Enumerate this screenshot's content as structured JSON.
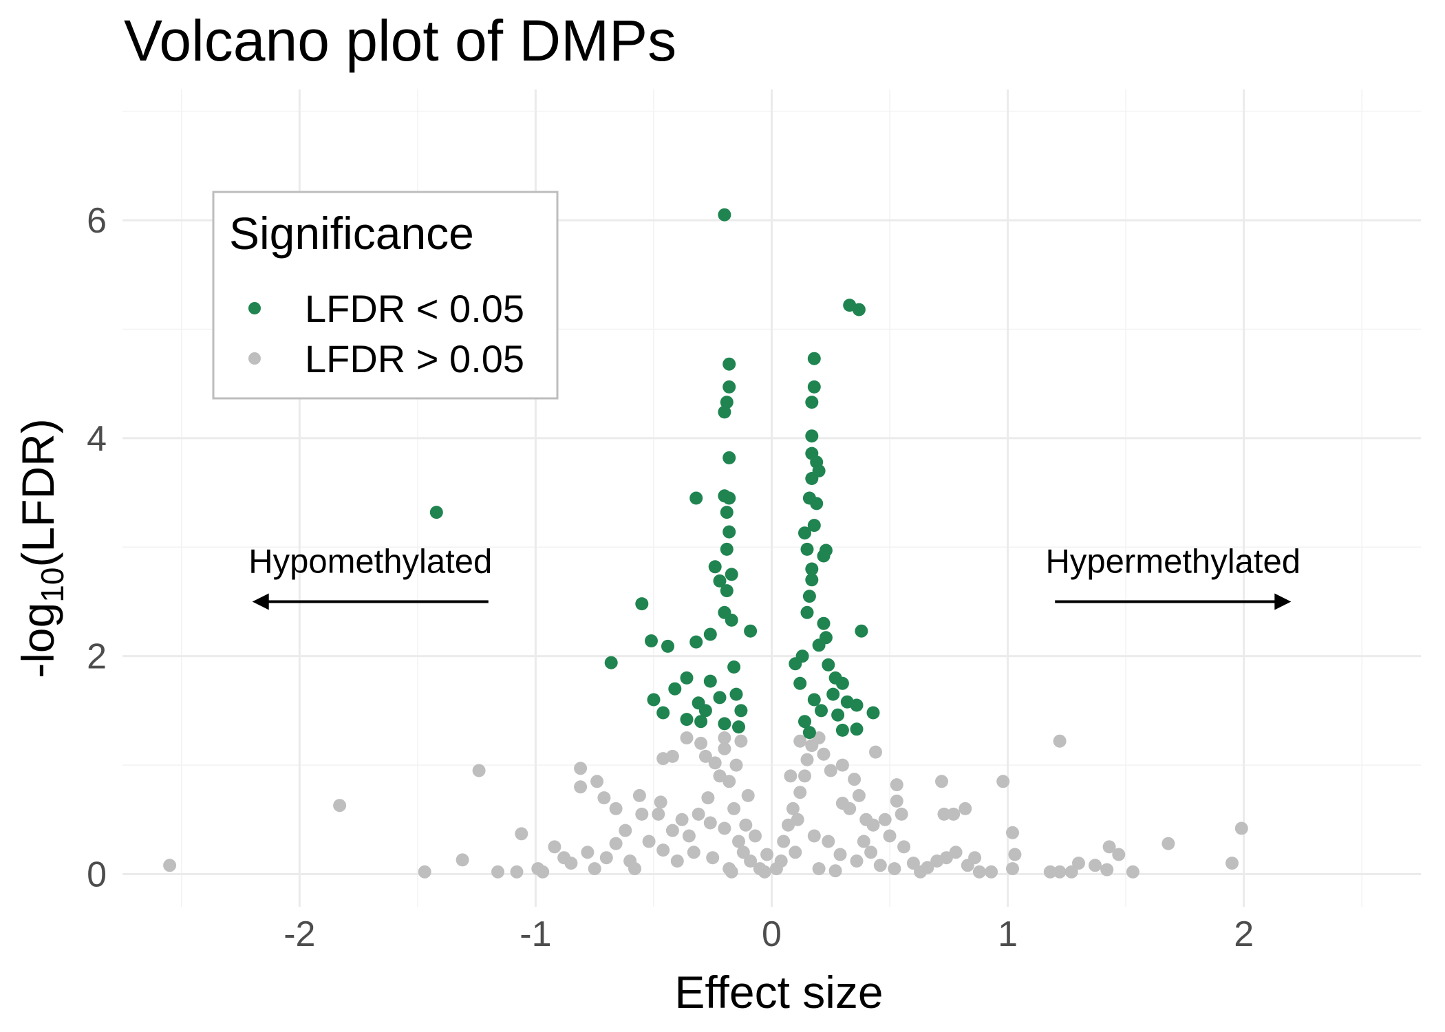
{
  "chart_data": {
    "type": "scatter",
    "title": "Volcano plot of DMPs",
    "xlabel": "Effect size",
    "ylabel": "-log10(LFDR)",
    "ylabel_parts": {
      "before": "-log",
      "sub": "10",
      "after": "(LFDR)"
    },
    "xlim": [
      -2.75,
      2.75
    ],
    "ylim": [
      -0.3,
      7.2
    ],
    "x_ticks": [
      -2,
      -1,
      0,
      1,
      2
    ],
    "x_tick_labels": [
      "-2",
      "-1",
      "0",
      "1",
      "2"
    ],
    "y_ticks": [
      0,
      2,
      4,
      6
    ],
    "y_tick_labels": [
      "0",
      "2",
      "4",
      "6"
    ],
    "grid": true,
    "legend": {
      "title": "Significance",
      "position": "top-left",
      "entries": [
        {
          "label": "LFDR < 0.05",
          "color": "#1f8450"
        },
        {
          "label": "LFDR > 0.05",
          "color": "#bebebe"
        }
      ]
    },
    "annotations": [
      {
        "text": "Hypomethylated",
        "arrow": "left",
        "arrow_x": [
          -1.2,
          -2.2
        ],
        "arrow_y": 2.5
      },
      {
        "text": "Hypermethylated",
        "arrow": "right",
        "arrow_x": [
          1.2,
          2.2
        ],
        "arrow_y": 2.5
      }
    ],
    "series": [
      {
        "name": "LFDR < 0.05",
        "color": "#1f8450",
        "points": [
          [
            -0.2,
            6.05
          ],
          [
            0.33,
            5.22
          ],
          [
            0.37,
            5.18
          ],
          [
            -1.42,
            3.32
          ],
          [
            -0.18,
            4.68
          ],
          [
            -0.18,
            4.47
          ],
          [
            -0.19,
            4.33
          ],
          [
            -0.2,
            4.24
          ],
          [
            -0.18,
            3.82
          ],
          [
            -0.32,
            3.45
          ],
          [
            -0.2,
            3.47
          ],
          [
            -0.18,
            3.45
          ],
          [
            -0.19,
            3.32
          ],
          [
            -0.18,
            3.14
          ],
          [
            -0.19,
            2.98
          ],
          [
            -0.24,
            2.82
          ],
          [
            -0.22,
            2.69
          ],
          [
            -0.17,
            2.75
          ],
          [
            -0.19,
            2.6
          ],
          [
            -0.55,
            2.48
          ],
          [
            -0.2,
            2.4
          ],
          [
            -0.17,
            2.33
          ],
          [
            -0.09,
            2.23
          ],
          [
            -0.26,
            2.2
          ],
          [
            -0.51,
            2.14
          ],
          [
            -0.44,
            2.09
          ],
          [
            -0.32,
            2.13
          ],
          [
            -0.68,
            1.94
          ],
          [
            -0.36,
            1.8
          ],
          [
            -0.26,
            1.77
          ],
          [
            -0.41,
            1.7
          ],
          [
            -0.5,
            1.6
          ],
          [
            -0.46,
            1.48
          ],
          [
            -0.31,
            1.57
          ],
          [
            -0.28,
            1.5
          ],
          [
            -0.36,
            1.42
          ],
          [
            -0.3,
            1.4
          ],
          [
            -0.2,
            1.38
          ],
          [
            -0.15,
            1.65
          ],
          [
            -0.13,
            1.5
          ],
          [
            -0.16,
            1.9
          ],
          [
            -0.14,
            1.35
          ],
          [
            -0.22,
            1.62
          ],
          [
            0.18,
            4.73
          ],
          [
            0.18,
            4.47
          ],
          [
            0.17,
            4.33
          ],
          [
            0.17,
            4.02
          ],
          [
            0.17,
            3.86
          ],
          [
            0.19,
            3.78
          ],
          [
            0.2,
            3.7
          ],
          [
            0.17,
            3.63
          ],
          [
            0.16,
            3.45
          ],
          [
            0.19,
            3.4
          ],
          [
            0.14,
            3.13
          ],
          [
            0.18,
            3.2
          ],
          [
            0.23,
            2.97
          ],
          [
            0.15,
            2.98
          ],
          [
            0.22,
            2.92
          ],
          [
            0.17,
            2.8
          ],
          [
            0.17,
            2.7
          ],
          [
            0.16,
            2.55
          ],
          [
            0.15,
            2.4
          ],
          [
            0.22,
            2.3
          ],
          [
            0.38,
            2.23
          ],
          [
            0.23,
            2.17
          ],
          [
            0.2,
            2.1
          ],
          [
            0.1,
            1.93
          ],
          [
            0.24,
            1.92
          ],
          [
            0.27,
            1.8
          ],
          [
            0.3,
            1.75
          ],
          [
            0.32,
            1.58
          ],
          [
            0.36,
            1.55
          ],
          [
            0.43,
            1.48
          ],
          [
            0.28,
            1.46
          ],
          [
            0.36,
            1.33
          ],
          [
            0.3,
            1.32
          ],
          [
            0.14,
            1.4
          ],
          [
            0.18,
            1.6
          ],
          [
            0.12,
            1.75
          ],
          [
            0.21,
            1.5
          ],
          [
            0.26,
            1.65
          ],
          [
            0.13,
            2.0
          ],
          [
            0.16,
            1.3
          ]
        ]
      },
      {
        "name": "LFDR > 0.05",
        "color": "#bebebe",
        "points": [
          [
            1.22,
            1.22
          ],
          [
            -1.24,
            0.95
          ],
          [
            -1.83,
            0.63
          ],
          [
            -2.55,
            0.08
          ],
          [
            -1.47,
            0.02
          ],
          [
            -1.31,
            0.13
          ],
          [
            -1.06,
            0.37
          ],
          [
            -1.08,
            0.02
          ],
          [
            -0.97,
            0.02
          ],
          [
            -0.81,
            0.97
          ],
          [
            -0.74,
            0.85
          ],
          [
            -0.81,
            0.8
          ],
          [
            -0.71,
            0.7
          ],
          [
            -0.56,
            0.72
          ],
          [
            -0.47,
            0.66
          ],
          [
            -0.48,
            0.55
          ],
          [
            -0.38,
            0.5
          ],
          [
            -0.46,
            1.06
          ],
          [
            -0.42,
            1.08
          ],
          [
            -0.36,
            1.25
          ],
          [
            -0.3,
            1.2
          ],
          [
            -0.28,
            1.08
          ],
          [
            -0.24,
            1.02
          ],
          [
            -0.22,
            0.9
          ],
          [
            -0.18,
            0.85
          ],
          [
            -0.16,
            0.6
          ],
          [
            -0.27,
            0.7
          ],
          [
            -0.26,
            0.47
          ],
          [
            -0.2,
            0.42
          ],
          [
            -0.14,
            0.3
          ],
          [
            -0.12,
            0.2
          ],
          [
            -0.1,
            0.72
          ],
          [
            -0.09,
            0.12
          ],
          [
            -0.33,
            0.2
          ],
          [
            -0.4,
            0.12
          ],
          [
            -0.52,
            0.3
          ],
          [
            -0.6,
            0.12
          ],
          [
            -0.66,
            0.28
          ],
          [
            -0.75,
            0.05
          ],
          [
            -0.92,
            0.25
          ],
          [
            -0.85,
            0.1
          ],
          [
            -1.16,
            0.02
          ],
          [
            -0.2,
            1.15
          ],
          [
            -0.15,
            1.0
          ],
          [
            -0.11,
            0.45
          ],
          [
            -0.05,
            0.05
          ],
          [
            -0.03,
            0.02
          ],
          [
            -0.17,
            0.02
          ],
          [
            -0.25,
            0.15
          ],
          [
            -0.35,
            0.35
          ],
          [
            -0.46,
            0.22
          ],
          [
            -0.58,
            0.05
          ],
          [
            -0.7,
            0.15
          ],
          [
            -0.13,
            1.22
          ],
          [
            -0.2,
            1.25
          ],
          [
            -0.18,
            0.05
          ],
          [
            0.05,
            0.3
          ],
          [
            0.07,
            0.45
          ],
          [
            0.09,
            0.6
          ],
          [
            0.12,
            0.75
          ],
          [
            0.14,
            0.9
          ],
          [
            0.15,
            1.05
          ],
          [
            0.17,
            1.18
          ],
          [
            0.2,
            1.25
          ],
          [
            0.22,
            1.1
          ],
          [
            0.25,
            0.95
          ],
          [
            0.3,
            1.0
          ],
          [
            0.35,
            0.87
          ],
          [
            0.33,
            0.6
          ],
          [
            0.37,
            0.72
          ],
          [
            0.4,
            0.5
          ],
          [
            0.43,
            0.45
          ],
          [
            0.44,
            1.12
          ],
          [
            0.48,
            0.5
          ],
          [
            0.5,
            0.35
          ],
          [
            0.53,
            0.82
          ],
          [
            0.53,
            0.67
          ],
          [
            0.55,
            0.55
          ],
          [
            0.6,
            0.1
          ],
          [
            0.63,
            0.02
          ],
          [
            0.72,
            0.85
          ],
          [
            0.73,
            0.55
          ],
          [
            0.77,
            0.55
          ],
          [
            0.82,
            0.6
          ],
          [
            0.78,
            0.2
          ],
          [
            0.83,
            0.08
          ],
          [
            0.88,
            0.02
          ],
          [
            0.93,
            0.02
          ],
          [
            0.98,
            0.85
          ],
          [
            1.02,
            0.38
          ],
          [
            1.03,
            0.18
          ],
          [
            1.02,
            0.05
          ],
          [
            1.18,
            0.02
          ],
          [
            1.22,
            0.02
          ],
          [
            1.27,
            0.02
          ],
          [
            1.3,
            0.1
          ],
          [
            1.37,
            0.08
          ],
          [
            1.43,
            0.25
          ],
          [
            1.47,
            0.18
          ],
          [
            1.42,
            0.04
          ],
          [
            1.53,
            0.02
          ],
          [
            1.68,
            0.28
          ],
          [
            1.95,
            0.1
          ],
          [
            1.99,
            0.42
          ],
          [
            0.02,
            0.05
          ],
          [
            0.04,
            0.12
          ],
          [
            0.1,
            0.2
          ],
          [
            0.18,
            0.35
          ],
          [
            0.24,
            0.3
          ],
          [
            0.29,
            0.18
          ],
          [
            0.36,
            0.12
          ],
          [
            0.42,
            0.2
          ],
          [
            0.46,
            0.08
          ],
          [
            0.52,
            0.05
          ],
          [
            0.66,
            0.06
          ],
          [
            0.7,
            0.12
          ],
          [
            0.12,
            1.22
          ],
          [
            0.2,
            0.05
          ],
          [
            0.27,
            0.03
          ],
          [
            0.08,
            0.9
          ],
          [
            0.11,
            0.5
          ],
          [
            0.3,
            0.65
          ],
          [
            0.39,
            0.3
          ],
          [
            0.56,
            0.25
          ],
          [
            0.74,
            0.15
          ],
          [
            0.86,
            0.15
          ],
          [
            -0.02,
            0.18
          ],
          [
            -0.07,
            0.35
          ],
          [
            -0.31,
            0.55
          ],
          [
            -0.42,
            0.4
          ],
          [
            -0.62,
            0.4
          ],
          [
            -0.78,
            0.2
          ],
          [
            -0.88,
            0.15
          ],
          [
            -0.99,
            0.05
          ],
          [
            -0.55,
            0.55
          ],
          [
            -0.66,
            0.6
          ]
        ]
      }
    ]
  }
}
